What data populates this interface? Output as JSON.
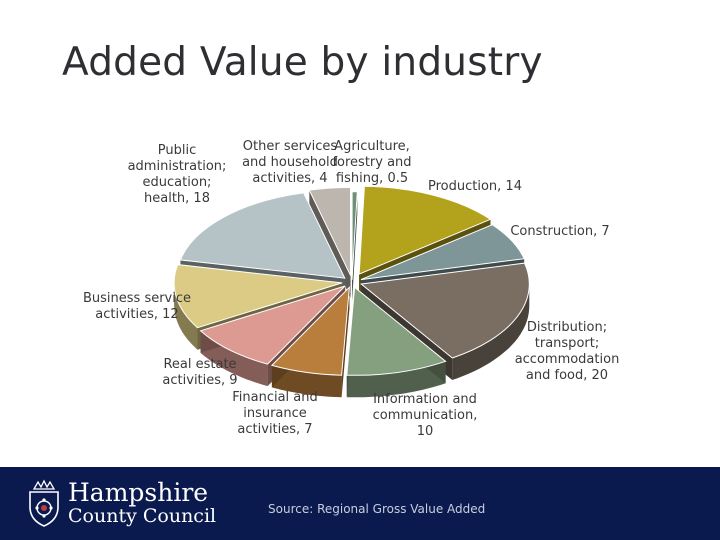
{
  "title": "Added Value by industry",
  "chart_data": {
    "type": "pie",
    "title": "",
    "slices": [
      {
        "category": "Agriculture, forestry and fishing",
        "value": 0.5,
        "color": "#6f8f7a",
        "label": [
          "Agriculture,",
          "forestry and",
          "fishing,  0.5"
        ]
      },
      {
        "category": "Production",
        "value": 14,
        "color": "#b3a21c",
        "label": [
          "Production,  14"
        ]
      },
      {
        "category": "Construction",
        "value": 7,
        "color": "#7e9697",
        "label": [
          "Construction,  7"
        ]
      },
      {
        "category": "Distribution; transport; accommodation and food",
        "value": 20,
        "color": "#7a6e63",
        "label": [
          "Distribution;",
          "transport;",
          "accommodation",
          "and food,  20"
        ]
      },
      {
        "category": "Information and communication",
        "value": 10,
        "color": "#85a07e",
        "label": [
          "Information and",
          "communication,",
          "10"
        ]
      },
      {
        "category": "Financial and insurance activities",
        "value": 7,
        "color": "#b97d3c",
        "label": [
          "Financial and",
          "insurance",
          "activities,  7"
        ]
      },
      {
        "category": "Real estate activities",
        "value": 9,
        "color": "#dc9a92",
        "label": [
          "Real estate",
          "activities,  9"
        ]
      },
      {
        "category": "Business service activities",
        "value": 12,
        "color": "#dccb85",
        "label": [
          "Business service",
          "activities,  12"
        ]
      },
      {
        "category": "Public administration; education; health",
        "value": 18,
        "color": "#b5c3c6",
        "label": [
          "Public",
          "administration;",
          "education;",
          "health,  18"
        ]
      },
      {
        "category": "Other services and household activities",
        "value": 4,
        "color": "#bdb6ae",
        "label": [
          "Other services",
          "and household",
          "activities,  4"
        ]
      }
    ]
  },
  "footer": {
    "org_line1": "Hampshire",
    "org_line2": "County Council",
    "source": "Source: Regional Gross Value Added",
    "background": "#0b1a4e"
  },
  "icons": {
    "logo": "hampshire-crest-icon"
  }
}
